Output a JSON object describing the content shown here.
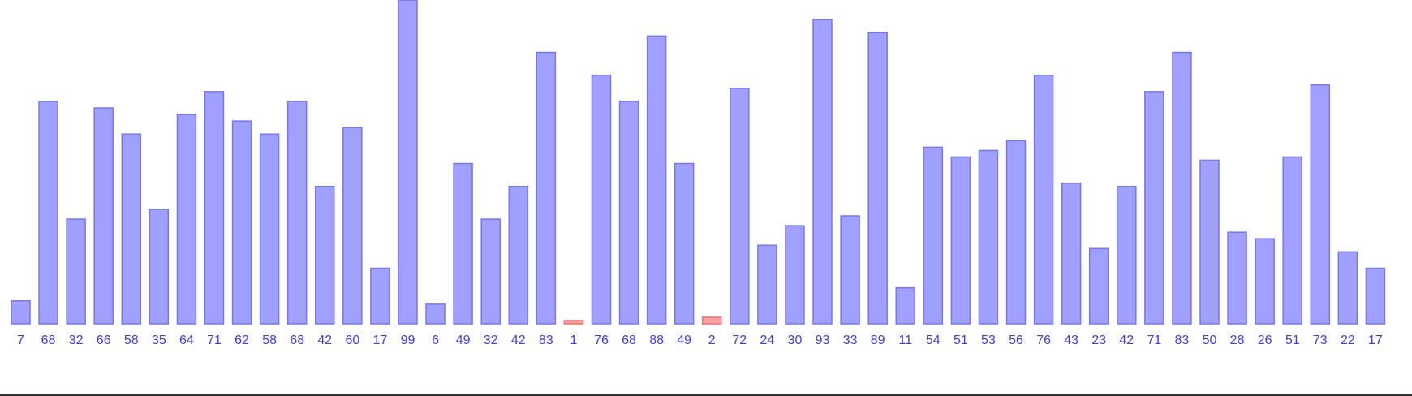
{
  "chart_data": {
    "type": "bar",
    "values": [
      7,
      68,
      32,
      66,
      58,
      35,
      64,
      71,
      62,
      58,
      68,
      42,
      60,
      17,
      99,
      6,
      49,
      32,
      42,
      83,
      1,
      76,
      68,
      88,
      49,
      2,
      72,
      24,
      30,
      93,
      33,
      89,
      11,
      54,
      51,
      53,
      56,
      76,
      43,
      23,
      42,
      71,
      83,
      50,
      28,
      26,
      51,
      73,
      22,
      17
    ],
    "colors": [
      "#a0a0ff",
      "#a0a0ff",
      "#a0a0ff",
      "#a0a0ff",
      "#a0a0ff",
      "#a0a0ff",
      "#a0a0ff",
      "#a0a0ff",
      "#a0a0ff",
      "#a0a0ff",
      "#a0a0ff",
      "#a0a0ff",
      "#a0a0ff",
      "#a0a0ff",
      "#a0a0ff",
      "#a0a0ff",
      "#a0a0ff",
      "#a0a0ff",
      "#a0a0ff",
      "#a0a0ff",
      "#ffa0a0",
      "#a0a0ff",
      "#a0a0ff",
      "#a0a0ff",
      "#a0a0ff",
      "#ffa0a0",
      "#a0a0ff",
      "#a0a0ff",
      "#a0a0ff",
      "#a0a0ff",
      "#a0a0ff",
      "#a0a0ff",
      "#a0a0ff",
      "#a0a0ff",
      "#a0a0ff",
      "#a0a0ff",
      "#a0a0ff",
      "#a0a0ff",
      "#a0a0ff",
      "#a0a0ff",
      "#a0a0ff",
      "#a0a0ff",
      "#a0a0ff",
      "#a0a0ff",
      "#a0a0ff",
      "#a0a0ff",
      "#a0a0ff",
      "#a0a0ff",
      "#a0a0ff",
      "#a0a0ff"
    ]
  }
}
